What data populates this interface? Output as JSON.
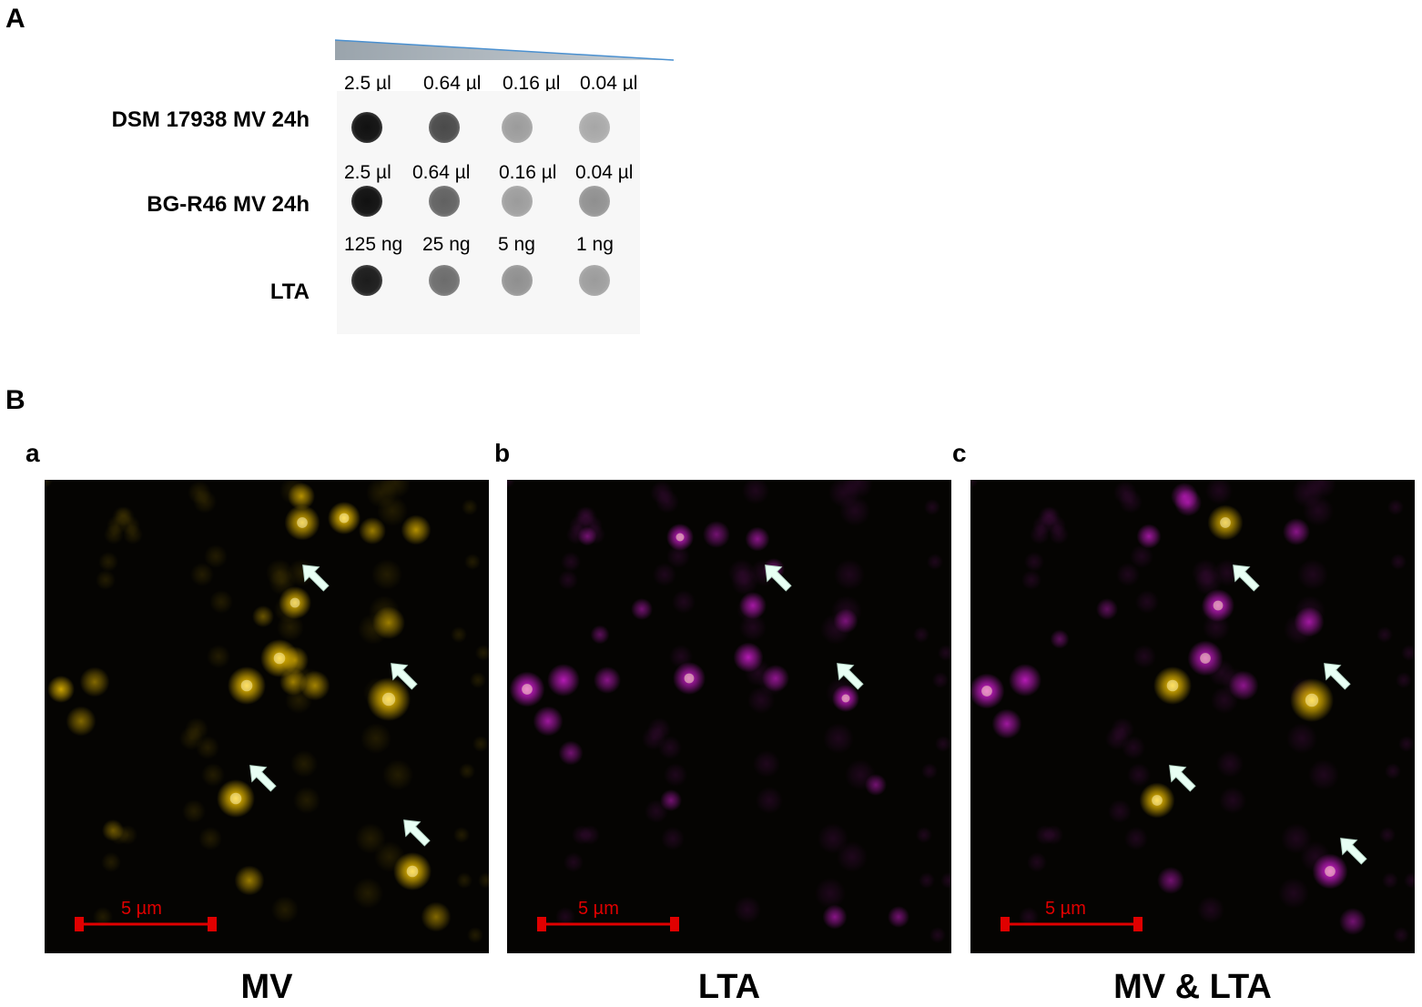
{
  "panel_a": {
    "letter": "A",
    "rows": [
      {
        "label": "DSM 17938 MV 24h",
        "amounts": [
          "2.5 µl",
          "0.64 µl",
          "0.16 µl",
          "0.04 µl"
        ],
        "dot_darkness": [
          0.95,
          0.7,
          0.35,
          0.3
        ]
      },
      {
        "label": "BG-R46 MV 24h",
        "amounts": [
          "2.5 µl",
          "0.64 µl",
          "0.16 µl",
          "0.04 µl"
        ],
        "dot_darkness": [
          0.95,
          0.6,
          0.35,
          0.4
        ]
      },
      {
        "label": "LTA",
        "amounts": [
          "125 ng",
          "25 ng",
          "5 ng",
          "1 ng"
        ],
        "dot_darkness": [
          0.9,
          0.55,
          0.4,
          0.35
        ]
      }
    ]
  },
  "panel_b": {
    "letter": "B",
    "images": [
      {
        "letter": "a",
        "caption": "MV",
        "scale_label": "5 µm",
        "channel": "mv"
      },
      {
        "letter": "b",
        "caption": "LTA",
        "scale_label": "5 µm",
        "channel": "lta"
      },
      {
        "letter": "c",
        "caption": "MV & LTA",
        "scale_label": "5 µm",
        "channel": "merge"
      }
    ]
  },
  "colors": {
    "mv": "#ffcc00",
    "lta": "#e020e0",
    "merge": "#ff9a60",
    "scale_bar": "#e00000",
    "arrow": "#e8fff4"
  }
}
